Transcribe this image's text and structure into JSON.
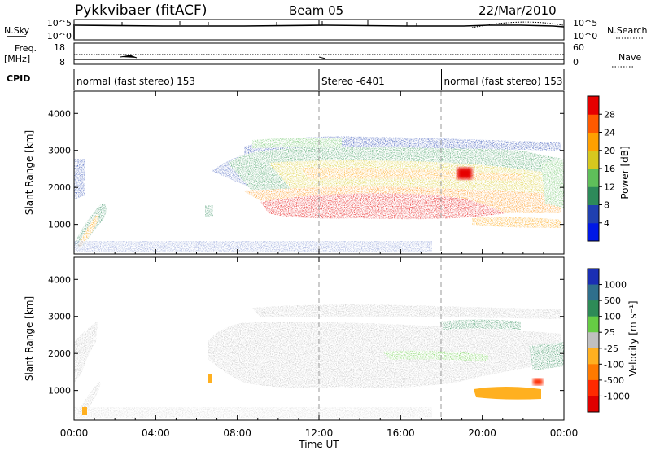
{
  "header": {
    "station": "Pykkvibaer (fitACF)",
    "beam": "Beam 05",
    "date": "22/Mar/2010"
  },
  "panels": {
    "nsky": {
      "left_label": "N.Sky",
      "left_ticks": [
        "10^5",
        "10^0"
      ],
      "right_label": "N.Search",
      "right_ticks": [
        "10^5",
        "10^0"
      ]
    },
    "freq": {
      "left_label_1": "Freq.",
      "left_label_2": "[MHz]",
      "left_ticks": [
        "18",
        "8"
      ],
      "right_label": "Nave",
      "right_ticks": [
        "60",
        "0"
      ]
    },
    "cpid": {
      "label": "CPID",
      "segments": [
        {
          "text": "normal (fast stereo) 153",
          "start_h": 0
        },
        {
          "text": "Stereo -6401",
          "start_h": 12
        },
        {
          "text": "normal (fast stereo) 153",
          "start_h": 18
        }
      ]
    }
  },
  "chart_data": [
    {
      "type": "heatmap",
      "parameter": "Power",
      "ylabel": "Slant Range [km]",
      "ylim": [
        200,
        4600
      ],
      "yticks": [
        "1000",
        "2000",
        "3000",
        "4000"
      ],
      "xlim_hours": [
        0,
        24
      ],
      "colorbar": {
        "label": "Power [dB]",
        "ticks": [
          "4",
          "8",
          "12",
          "16",
          "20",
          "24",
          "28"
        ],
        "colors": [
          "#0018e6",
          "#2040b0",
          "#2d8a5a",
          "#5fbf5a",
          "#d6c81e",
          "#ffa000",
          "#ff5a00",
          "#e60000"
        ]
      }
    },
    {
      "type": "heatmap",
      "parameter": "Velocity",
      "ylabel": "Slant Range [km]",
      "ylim": [
        200,
        4600
      ],
      "yticks": [
        "1000",
        "2000",
        "3000",
        "4000"
      ],
      "xlim_hours": [
        0,
        24
      ],
      "xticks": [
        "00:00",
        "04:00",
        "08:00",
        "12:00",
        "16:00",
        "20:00",
        "00:00"
      ],
      "xlabel": "Time UT",
      "colorbar": {
        "label": "Velocity [m s⁻¹]",
        "ticks": [
          "1000",
          "500",
          "100",
          "25",
          "-25",
          "-100",
          "-500",
          "-1000"
        ],
        "colors": [
          "#1a2fb4",
          "#2f6f8c",
          "#2e8b57",
          "#66cc44",
          "#c0c0c0",
          "#ffb020",
          "#ff7a00",
          "#ff2a00",
          "#e00000"
        ]
      }
    }
  ]
}
